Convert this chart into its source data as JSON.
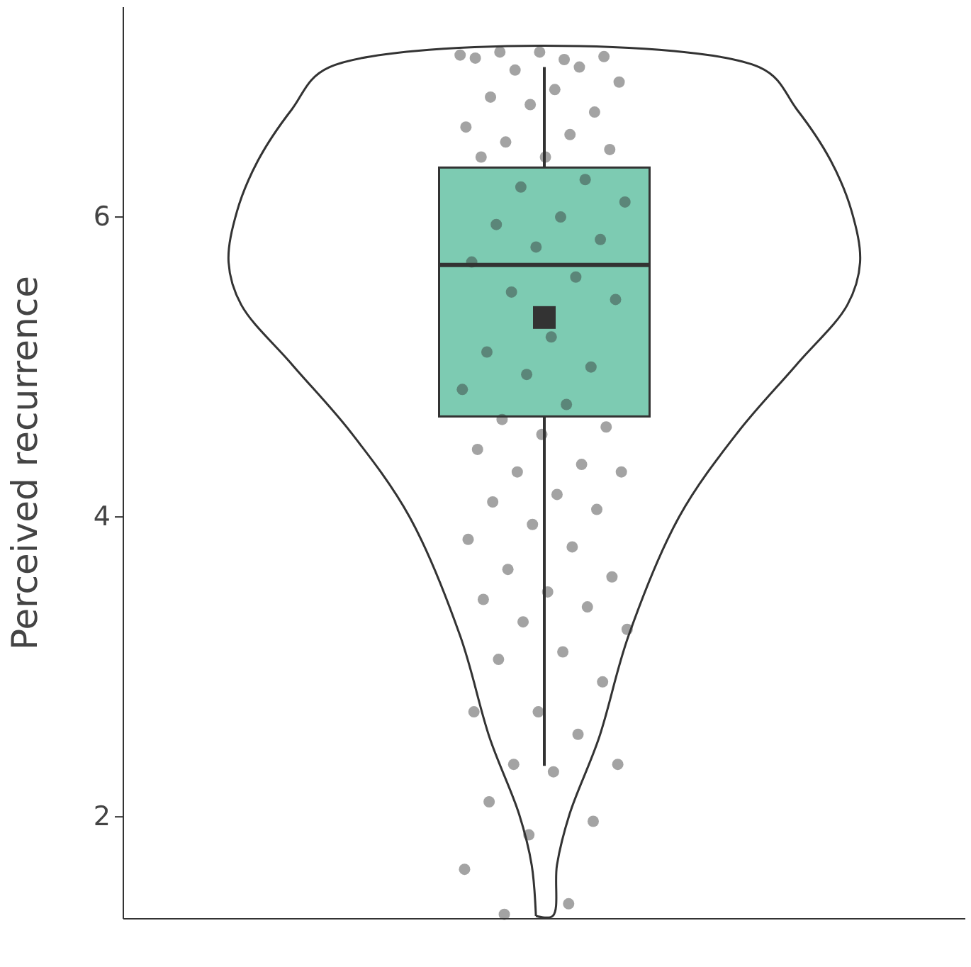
{
  "chart_data": {
    "type": "box",
    "ylabel": "Perceived recurrence",
    "categories": [
      null
    ],
    "color": "#66c2a5",
    "ylim": [
      1.32,
      7.4
    ],
    "yticks": [
      2,
      4,
      6
    ],
    "grid": false,
    "tick_labels": "y",
    "boxes": [
      {
        "low": 2.34,
        "q1": 4.67,
        "median": 5.68,
        "q3": 6.33,
        "high": 7.0,
        "mean": 5.33
      }
    ],
    "series": [
      {
        "type": "scatter",
        "color": "#333333",
        "x": [
          null,
          null,
          null,
          null,
          null,
          null,
          null,
          null,
          null,
          null,
          null,
          null,
          null,
          null,
          null,
          null,
          null,
          null,
          null,
          null,
          null,
          null,
          null,
          null,
          null,
          null,
          null,
          null,
          null,
          null,
          null,
          null,
          null,
          null,
          null,
          null,
          null,
          null,
          null,
          null,
          null,
          null,
          null,
          null,
          null,
          null,
          null,
          null,
          null,
          null,
          null,
          null,
          null,
          null,
          null,
          null,
          null,
          null,
          null,
          null,
          null,
          null,
          null,
          null,
          null,
          null,
          null,
          null,
          null,
          null,
          null
        ],
        "values": [
          7.08,
          7.05,
          7.1,
          7.07,
          7.1,
          7.06,
          7.0,
          6.98,
          6.9,
          6.85,
          6.8,
          6.7,
          6.75,
          6.6,
          6.55,
          6.5,
          6.45,
          6.4,
          6.4,
          6.25,
          6.2,
          6.1,
          6.0,
          5.95,
          5.85,
          5.8,
          5.7,
          5.6,
          5.5,
          5.45,
          5.2,
          5.1,
          5.0,
          4.95,
          4.85,
          4.75,
          4.65,
          4.6,
          4.55,
          4.45,
          4.35,
          4.3,
          4.3,
          4.15,
          4.1,
          4.05,
          3.95,
          3.85,
          3.8,
          3.65,
          3.6,
          3.5,
          3.45,
          3.4,
          3.3,
          3.25,
          3.1,
          3.05,
          2.9,
          2.7,
          2.7,
          2.55,
          2.35,
          2.35,
          2.3,
          2.1,
          1.97,
          1.88,
          1.65,
          1.42,
          1.35
        ]
      }
    ]
  }
}
